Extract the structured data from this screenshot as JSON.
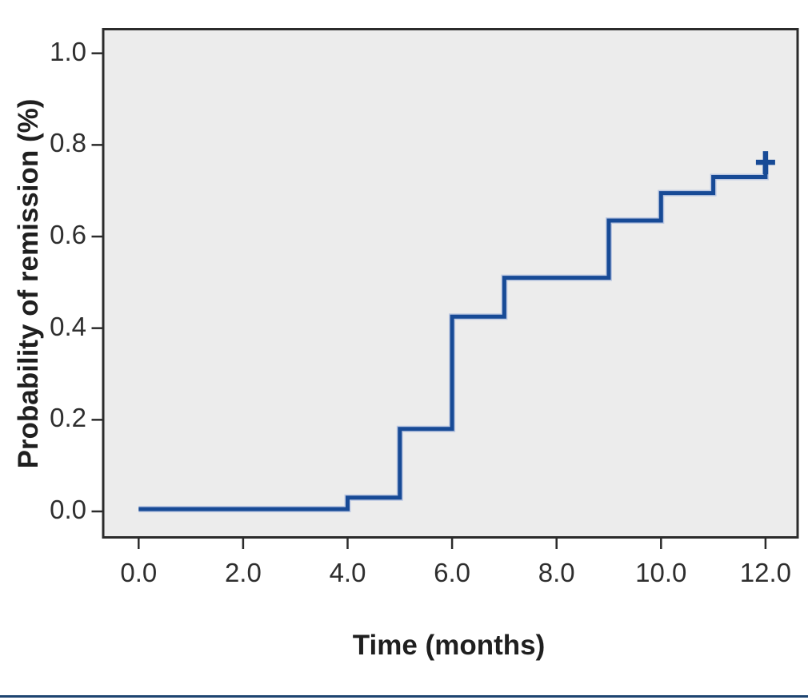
{
  "chart_data": {
    "type": "line",
    "subtype": "kaplan_meier_step",
    "title": "",
    "xlabel": "Time (months)",
    "ylabel": "Probability of remission (%)",
    "xlim": [
      0.0,
      12.0
    ],
    "ylim": [
      0.0,
      1.0
    ],
    "grid": false,
    "legend": false,
    "plot_background": "#ececec",
    "axis_color": "#2b2b2b",
    "tick_label_color": "#2e2e2e",
    "x_ticks": {
      "values": [
        0.0,
        2.0,
        4.0,
        6.0,
        8.0,
        10.0,
        12.0
      ],
      "labels": [
        "0.0",
        "2.0",
        "4.0",
        "6.0",
        "8.0",
        "10.0",
        "12.0"
      ]
    },
    "y_ticks": {
      "values": [
        0.0,
        0.2,
        0.4,
        0.6,
        0.8,
        1.0
      ],
      "labels": [
        "0.0",
        "0.2",
        "0.4",
        "0.6",
        "0.8",
        "1.0"
      ]
    },
    "series": [
      {
        "name": "Probability of remission",
        "color": "#174a96",
        "halo_color": "#bcc8e2",
        "steps": [
          [
            0.0,
            0.005
          ],
          [
            4.0,
            0.03
          ],
          [
            5.0,
            0.18
          ],
          [
            6.0,
            0.425
          ],
          [
            7.0,
            0.51
          ],
          [
            9.0,
            0.635
          ],
          [
            10.0,
            0.695
          ],
          [
            11.0,
            0.73
          ],
          [
            12.0,
            0.755
          ]
        ],
        "censored": [
          [
            12.0,
            0.762
          ]
        ]
      }
    ],
    "bottom_rule_color": "#1d4470"
  }
}
